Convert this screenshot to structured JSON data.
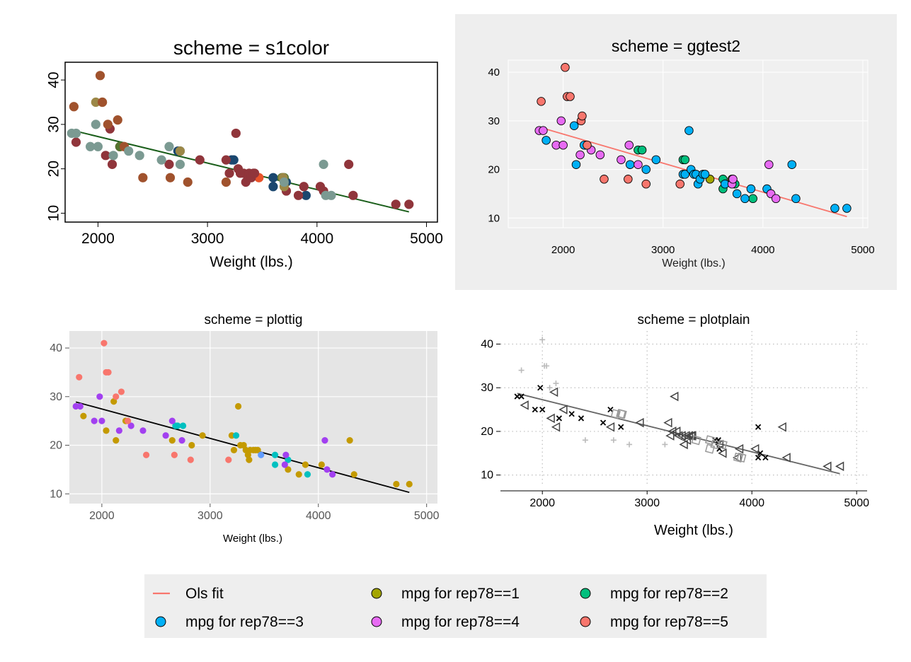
{
  "chart_data": [
    {
      "type": "scatter",
      "title": "scheme = s1color",
      "xlabel": "Weight (lbs.)",
      "ylabel": "",
      "xlim": [
        1700,
        5100
      ],
      "ylim": [
        8,
        44
      ],
      "xticks": [
        "2000",
        "3000",
        "4000",
        "5000"
      ],
      "yticks": [
        "10",
        "20",
        "30",
        "40"
      ],
      "grid": false,
      "fit": {
        "name": "Ols fit",
        "x": [
          1760,
          4840
        ],
        "y": [
          28.7,
          10.3
        ],
        "color": "#1a5e1a"
      },
      "series": [
        {
          "key": "rep1",
          "color": "#e8532a",
          "x": [
            3470
          ],
          "y": [
            18
          ]
        },
        {
          "key": "rep2",
          "color": "#1a476f",
          "x": [
            2730,
            2750,
            3220,
            3240,
            3600,
            3600,
            3720,
            3900
          ],
          "y": [
            24,
            24,
            22,
            22,
            18,
            16,
            17,
            14
          ]
        },
        {
          "key": "rep3",
          "color": "#90353b",
          "x": [
            1800,
            2070,
            2110,
            2130,
            2200,
            2930,
            3170,
            3200,
            3260,
            3280,
            3300,
            3330,
            3350,
            3370,
            3380,
            3400,
            3420,
            3430,
            3690,
            3720,
            3830,
            3880,
            4030,
            4060,
            4290,
            4330,
            4720,
            4840,
            2650
          ],
          "y": [
            26,
            23,
            29,
            21,
            25,
            22,
            22,
            19,
            28,
            20,
            19,
            19,
            17,
            18,
            19,
            18,
            19,
            19,
            18,
            15,
            14,
            16,
            16,
            15,
            21,
            14,
            12,
            12,
            21
          ]
        },
        {
          "key": "rep4",
          "color": "#55752f",
          "x": [
            2200,
            3680,
            3700
          ],
          "y": [
            25,
            18,
            18
          ]
        },
        {
          "key": "rep5",
          "color": "#9c8847",
          "x": [
            1980,
            2040,
            2750,
            3690,
            3700
          ],
          "y": [
            35,
            35,
            24,
            18,
            16
          ]
        },
        {
          "key": "rep6",
          "color": "#a0522d",
          "x": [
            1780,
            2020,
            2040,
            2090,
            2180,
            2240,
            2410,
            2660,
            2820,
            3170
          ],
          "y": [
            34,
            41,
            35,
            30,
            31,
            25,
            18,
            18,
            17,
            17
          ]
        },
        {
          "key": "rep7",
          "color": "#7b9a92",
          "x": [
            1760,
            1800,
            1930,
            1980,
            2000,
            2140,
            2280,
            2380,
            2580,
            2650,
            2750,
            3700,
            4060,
            4080,
            4130
          ],
          "y": [
            28,
            28,
            25,
            30,
            25,
            23,
            24,
            23,
            22,
            25,
            21,
            17,
            21,
            14,
            14
          ]
        }
      ]
    },
    {
      "type": "scatter",
      "title": "scheme = ggtest2",
      "xlabel": "Weight (lbs.)",
      "ylabel": "",
      "xlim": [
        1450,
        5050
      ],
      "ylim": [
        8,
        42.5
      ],
      "xticks": [
        "2000",
        "3000",
        "4000",
        "5000"
      ],
      "yticks": [
        "10",
        "20",
        "30",
        "40"
      ],
      "grid": true,
      "fit": {
        "name": "Ols fit",
        "x": [
          1760,
          4840
        ],
        "y": [
          28.7,
          10.3
        ],
        "color": "#f8766d"
      },
      "series": [
        {
          "key": "rep1",
          "color": "#a3a500",
          "x": [
            3470,
            3690
          ],
          "y": [
            18,
            18
          ]
        },
        {
          "key": "rep2",
          "color": "#00bf7d",
          "x": [
            2750,
            2790,
            3200,
            3220,
            3600,
            3600,
            3720,
            3900
          ],
          "y": [
            24,
            24,
            22,
            22,
            18,
            16,
            17,
            14
          ]
        },
        {
          "key": "rep3",
          "color": "#00b0f6",
          "x": [
            1830,
            2130,
            2220,
            2110,
            2210,
            2670,
            2830,
            2930,
            3200,
            3220,
            3260,
            3280,
            3310,
            3330,
            3350,
            3370,
            3400,
            3420,
            3740,
            3820,
            3880,
            4040,
            4290,
            4330,
            4720,
            4840,
            3620
          ],
          "y": [
            26,
            21,
            25,
            29,
            25,
            21,
            20,
            22,
            19,
            19,
            28,
            20,
            19,
            19,
            17,
            18,
            19,
            19,
            15,
            14,
            16,
            16,
            21,
            14,
            12,
            12,
            17
          ]
        },
        {
          "key": "rep4",
          "color": "#e76bf3",
          "x": [
            1760,
            1800,
            1930,
            1980,
            2000,
            2170,
            2280,
            2370,
            2580,
            2660,
            2750,
            3690,
            3700,
            4060,
            4080,
            4130
          ],
          "y": [
            28,
            28,
            25,
            30,
            25,
            23,
            24,
            23,
            22,
            25,
            21,
            17,
            18,
            21,
            15,
            14
          ]
        },
        {
          "key": "rep5",
          "color": "#f8766d",
          "x": [
            1780,
            2020,
            2040,
            2070,
            2180,
            2190,
            2410,
            2650,
            2830,
            3170,
            2240
          ],
          "y": [
            34,
            41,
            35,
            35,
            30,
            31,
            18,
            18,
            17,
            17,
            25
          ]
        }
      ]
    },
    {
      "type": "scatter",
      "title": "scheme = plottig",
      "xlabel": "Weight (lbs.)",
      "ylabel": "",
      "xlim": [
        1700,
        5100
      ],
      "ylim": [
        8,
        43.5
      ],
      "xticks": [
        "2000",
        "3000",
        "4000",
        "5000"
      ],
      "yticks": [
        "10",
        "20",
        "30",
        "40"
      ],
      "grid": true,
      "fit": {
        "name": "Ols fit",
        "x": [
          1760,
          4840
        ],
        "y": [
          28.9,
          10.3
        ],
        "color": "#000000"
      },
      "series": [
        {
          "key": "rep1",
          "color": "#c49a00",
          "x": [
            1830,
            2040,
            2110,
            2130,
            2220,
            2650,
            2830,
            2930,
            3200,
            3220,
            3260,
            3280,
            3310,
            3330,
            3360,
            3400,
            3420,
            3440,
            3720,
            3820,
            3880,
            4030,
            4290,
            4330,
            4720,
            4840,
            3350,
            3370
          ],
          "y": [
            26,
            23,
            29,
            21,
            25,
            21,
            20,
            22,
            22,
            19,
            28,
            20,
            20,
            19,
            17,
            19,
            19,
            19,
            15,
            14,
            16,
            16,
            21,
            14,
            12,
            12,
            18,
            19
          ]
        },
        {
          "key": "rep2",
          "color": "#00c0c0",
          "x": [
            2680,
            2700,
            2750,
            3240,
            3600,
            3600,
            3720,
            3900
          ],
          "y": [
            24,
            24,
            24,
            22,
            18,
            16,
            17,
            14
          ]
        },
        {
          "key": "rep3",
          "color": "#619cff",
          "x": [
            3470
          ],
          "y": [
            18
          ]
        },
        {
          "key": "rep4",
          "color": "#a240f0",
          "x": [
            1760,
            1800,
            1930,
            1980,
            2000,
            2160,
            2270,
            2380,
            2590,
            2650,
            2740,
            3700,
            4060,
            4080,
            4130,
            3690
          ],
          "y": [
            28,
            28,
            25,
            30,
            25,
            23,
            24,
            23,
            22,
            25,
            21,
            18,
            21,
            15,
            14,
            16
          ]
        },
        {
          "key": "rep5",
          "color": "#f8766d",
          "x": [
            1790,
            2020,
            2040,
            2060,
            2130,
            2180,
            2240,
            2410,
            2670,
            2820,
            3170
          ],
          "y": [
            34,
            41,
            35,
            35,
            30,
            31,
            25,
            18,
            18,
            17,
            17
          ]
        }
      ]
    },
    {
      "type": "scatter",
      "title": "scheme = plotplain",
      "xlabel": "Weight (lbs.)",
      "ylabel": "",
      "xlim": [
        1600,
        5100
      ],
      "ylim": [
        8,
        43
      ],
      "xticks": [
        "2000",
        "3000",
        "4000",
        "5000"
      ],
      "yticks": [
        "10",
        "20",
        "30",
        "40"
      ],
      "grid": true,
      "fit": {
        "name": "Ols fit",
        "x": [
          1760,
          4840
        ],
        "y": [
          28.7,
          10.3
        ],
        "color": "#666666"
      },
      "series": [
        {
          "key": "rep1",
          "marker": "plus",
          "color": "#bbbbbb",
          "x": [
            1800,
            2000,
            2020,
            2040,
            2070,
            2130,
            2410,
            2680,
            2830,
            3170
          ],
          "y": [
            34,
            41,
            35,
            35,
            30,
            31,
            18,
            18,
            17,
            17
          ]
        },
        {
          "key": "rep2",
          "marker": "x",
          "color": "#000000",
          "x": [
            1760,
            1800,
            1930,
            1980,
            2000,
            2160,
            2280,
            2370,
            2580,
            2650,
            2750,
            3650,
            3680,
            3690,
            4060,
            4080,
            4130,
            4060
          ],
          "y": [
            28,
            28,
            25,
            30,
            25,
            23,
            24,
            23,
            22,
            25,
            21,
            18,
            18,
            16,
            21,
            15,
            14,
            14
          ]
        },
        {
          "key": "rep3",
          "marker": "triangle-left",
          "color": "#444444",
          "x": [
            1830,
            2080,
            2110,
            2130,
            2200,
            2650,
            2930,
            3200,
            3220,
            3260,
            3280,
            3300,
            3330,
            3350,
            3380,
            3400,
            3420,
            3430,
            3690,
            3720,
            3860,
            3880,
            4030,
            4290,
            4330,
            4720,
            4840,
            3240,
            3370
          ],
          "y": [
            26,
            23,
            29,
            21,
            25,
            21,
            22,
            22,
            19,
            28,
            20,
            19,
            19,
            17,
            18,
            19,
            19,
            19,
            17,
            15,
            14,
            16,
            16,
            21,
            14,
            12,
            12,
            20,
            19
          ]
        },
        {
          "key": "rep4",
          "marker": "square",
          "color": "#999999",
          "x": [
            2700,
            2750,
            2760,
            3470,
            3600,
            3600,
            3720,
            3870,
            3900,
            3650
          ],
          "y": [
            24,
            24,
            24,
            18,
            18,
            16,
            17,
            14,
            14,
            17
          ]
        }
      ]
    }
  ],
  "legend": {
    "placement": "bottom",
    "items": [
      {
        "label": "Ols fit",
        "symbol": "line",
        "color": "#f8766d"
      },
      {
        "label": "mpg for rep78==1",
        "symbol": "circle",
        "color": "#a3a500"
      },
      {
        "label": "mpg for rep78==2",
        "symbol": "circle",
        "color": "#00bf7d"
      },
      {
        "label": "mpg for rep78==3",
        "symbol": "circle",
        "color": "#00b0f6"
      },
      {
        "label": "mpg for rep78==4",
        "symbol": "circle",
        "color": "#e76bf3"
      },
      {
        "label": "mpg for rep78==5",
        "symbol": "circle",
        "color": "#f8766d"
      }
    ]
  }
}
